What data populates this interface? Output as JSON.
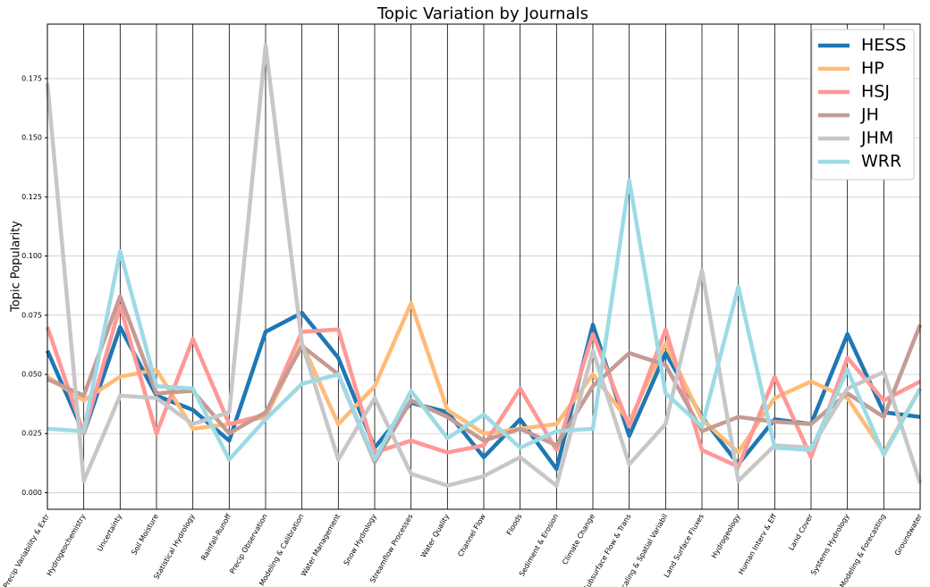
{
  "chart_data": {
    "type": "line",
    "title": "Topic Variation by Journals",
    "ylabel": "Topic Popularity",
    "categories": [
      "Precip Variability & Extr",
      "Hydrogeochemistry",
      "Uncertainty",
      "Soil Moisture",
      "Statistical Hydrology",
      "Rainfall-Runoff",
      "Precip Observation",
      "Modeling & Calibration",
      "Water Management",
      "Snow Hydrology",
      "Streamflow Processes",
      "Water Quality",
      "Channel Flow",
      "Floods",
      "Sediment & Erosion",
      "Climate Change",
      "Subsurface Flow & Trans",
      "Scaling & Spatial Variabil",
      "Land Surface Fluxes",
      "Hydrogeology",
      "Human Interv & Eff",
      "Land Cover",
      "Systems Hydrology",
      "Modeling & Forecasting",
      "Groundwater"
    ],
    "series": [
      {
        "name": "HESS",
        "color": "#1f77b4",
        "values": [
          0.06,
          0.025,
          0.07,
          0.041,
          0.035,
          0.022,
          0.068,
          0.076,
          0.057,
          0.019,
          0.038,
          0.034,
          0.015,
          0.031,
          0.01,
          0.071,
          0.024,
          0.059,
          0.032,
          0.012,
          0.031,
          0.029,
          0.067,
          0.034,
          0.032
        ]
      },
      {
        "name": "HP",
        "color": "#ffbb78",
        "values": [
          0.049,
          0.039,
          0.049,
          0.052,
          0.027,
          0.029,
          0.032,
          0.063,
          0.029,
          0.045,
          0.08,
          0.035,
          0.025,
          0.027,
          0.029,
          0.05,
          0.03,
          0.063,
          0.031,
          0.017,
          0.04,
          0.047,
          0.04,
          0.017,
          0.044
        ]
      },
      {
        "name": "HSJ",
        "color": "#ff9896",
        "values": [
          0.07,
          0.025,
          0.079,
          0.025,
          0.065,
          0.029,
          0.033,
          0.068,
          0.069,
          0.017,
          0.022,
          0.017,
          0.02,
          0.044,
          0.018,
          0.067,
          0.028,
          0.069,
          0.018,
          0.011,
          0.049,
          0.015,
          0.057,
          0.039,
          0.047
        ]
      },
      {
        "name": "JH",
        "color": "#c49c94",
        "values": [
          0.048,
          0.041,
          0.083,
          0.042,
          0.043,
          0.025,
          0.034,
          0.062,
          0.05,
          0.013,
          0.039,
          0.032,
          0.022,
          0.027,
          0.02,
          0.045,
          0.059,
          0.054,
          0.026,
          0.032,
          0.03,
          0.029,
          0.042,
          0.032,
          0.071
        ]
      },
      {
        "name": "JHM",
        "color": "#c7c7c7",
        "values": [
          0.173,
          0.005,
          0.041,
          0.04,
          0.029,
          0.034,
          0.189,
          0.063,
          0.014,
          0.04,
          0.008,
          0.003,
          0.007,
          0.015,
          0.003,
          0.06,
          0.012,
          0.029,
          0.094,
          0.005,
          0.02,
          0.019,
          0.044,
          0.051,
          0.004
        ]
      },
      {
        "name": "WRR",
        "color": "#9edae5",
        "values": [
          0.027,
          0.026,
          0.102,
          0.045,
          0.044,
          0.014,
          0.031,
          0.046,
          0.05,
          0.014,
          0.043,
          0.023,
          0.033,
          0.019,
          0.026,
          0.027,
          0.132,
          0.042,
          0.028,
          0.087,
          0.019,
          0.018,
          0.052,
          0.016,
          0.044
        ]
      }
    ],
    "ylim": [
      -0.007,
      0.198
    ],
    "yticks": [
      {
        "value": 0,
        "label": "0.000"
      },
      0.025,
      {
        "value": 0.05,
        "label": "0.050"
      },
      0.075,
      {
        "value": 0.1,
        "label": "0.100"
      },
      0.125,
      {
        "value": 0.15,
        "label": "0.150"
      },
      0.175
    ],
    "grid": true,
    "legend": "upper right"
  }
}
